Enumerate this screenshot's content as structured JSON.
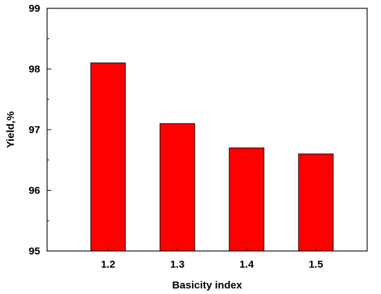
{
  "chart_data": {
    "type": "bar",
    "categories": [
      "1.2",
      "1.3",
      "1.4",
      "1.5"
    ],
    "values": [
      98.1,
      97.1,
      96.7,
      96.6
    ],
    "xlabel": "Basicity index",
    "ylabel": "Yield,%",
    "ylim": [
      95,
      99
    ],
    "yticks": [
      "95",
      "96",
      "97",
      "98",
      "99"
    ],
    "minor_ticks": true,
    "grid": false,
    "legend": "none",
    "bar_color": "#ff0000",
    "bar_edge_color": "#000000"
  }
}
